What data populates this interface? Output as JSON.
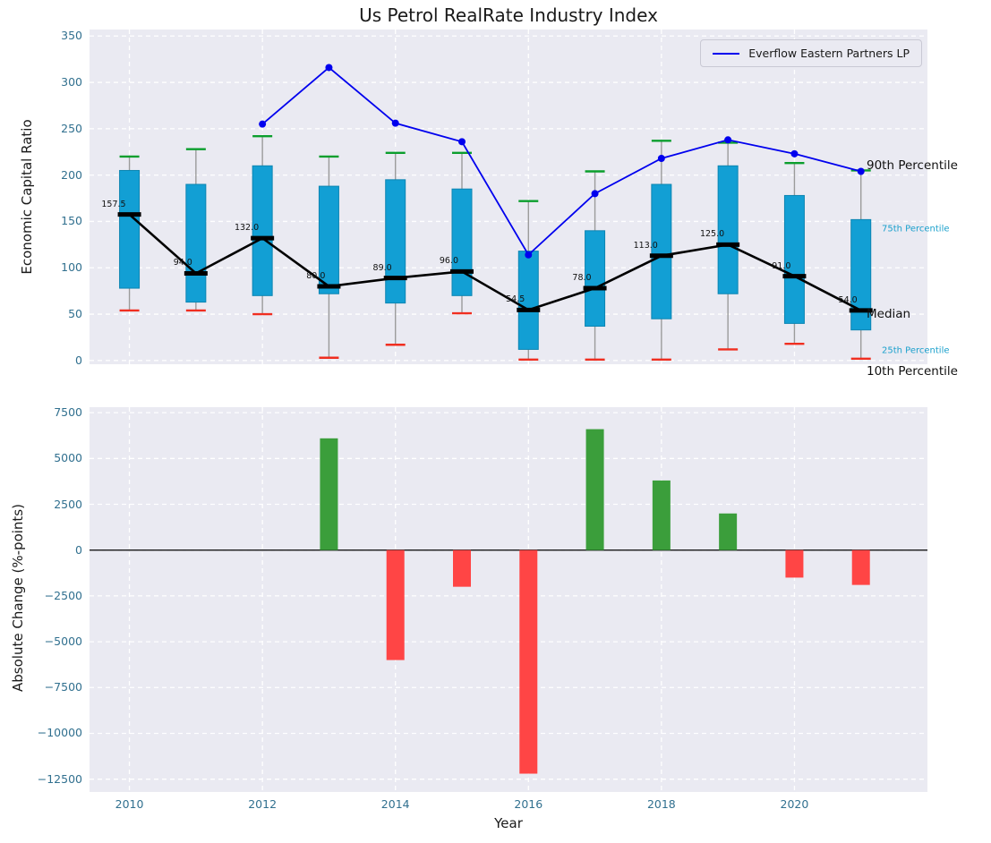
{
  "title": "Us Petrol RealRate Industry Index",
  "legend": {
    "label": "Everflow Eastern Partners LP"
  },
  "colors": {
    "plot_background": "#eaeaf2",
    "grid": "#ffffff",
    "box_fill": "#129fd4",
    "box_edge": "#0d85b2",
    "whisker": "#9b9b9b",
    "cap_top": "#0b9e2d",
    "cap_bottom": "#f02e20",
    "median": "#000000",
    "company_line": "#0000ee",
    "bar_positive": "#3b9e3b",
    "bar_negative": "#ff4545",
    "tick_label": "#31708f",
    "text": "#1a1a1a",
    "annotation_secondary": "#1aa0cc"
  },
  "chart_data": [
    {
      "type": "boxplot",
      "title": "Us Petrol RealRate Industry Index",
      "ylabel": "Economic Capital Ratio",
      "ylim": [
        0,
        350
      ],
      "yticks": [
        0,
        50,
        100,
        150,
        200,
        250,
        300,
        350
      ],
      "years": [
        2010,
        2011,
        2012,
        2013,
        2014,
        2015,
        2016,
        2017,
        2018,
        2019,
        2020,
        2021
      ],
      "boxes": [
        {
          "year": 2010,
          "p10": 54,
          "p25": 78,
          "median": 157.5,
          "p75": 205,
          "p90": 220,
          "label": "157.5"
        },
        {
          "year": 2011,
          "p10": 54,
          "p25": 63,
          "median": 94,
          "p75": 190,
          "p90": 228,
          "label": "94.0"
        },
        {
          "year": 2012,
          "p10": 50,
          "p25": 70,
          "median": 132,
          "p75": 210,
          "p90": 242,
          "label": "132.0"
        },
        {
          "year": 2013,
          "p10": 3,
          "p25": 72,
          "median": 80,
          "p75": 188,
          "p90": 220,
          "label": "80.0"
        },
        {
          "year": 2014,
          "p10": 17,
          "p25": 62,
          "median": 89,
          "p75": 195,
          "p90": 224,
          "label": "89.0"
        },
        {
          "year": 2015,
          "p10": 51,
          "p25": 70,
          "median": 96,
          "p75": 185,
          "p90": 224,
          "label": "96.0"
        },
        {
          "year": 2016,
          "p10": 1,
          "p25": 12,
          "median": 54.5,
          "p75": 118,
          "p90": 172,
          "label": "54.5"
        },
        {
          "year": 2017,
          "p10": 1,
          "p25": 37,
          "median": 78,
          "p75": 140,
          "p90": 204,
          "label": "78.0"
        },
        {
          "year": 2018,
          "p10": 1,
          "p25": 45,
          "median": 113,
          "p75": 190,
          "p90": 237,
          "label": "113.0"
        },
        {
          "year": 2019,
          "p10": 12,
          "p25": 72,
          "median": 125,
          "p75": 210,
          "p90": 235,
          "label": "125.0"
        },
        {
          "year": 2020,
          "p10": 18,
          "p25": 40,
          "median": 91,
          "p75": 178,
          "p90": 213,
          "label": "91.0"
        },
        {
          "year": 2021,
          "p10": 2,
          "p25": 33,
          "median": 54,
          "p75": 152,
          "p90": 205,
          "label": "54.0"
        }
      ],
      "company_series": {
        "name": "Everflow Eastern Partners LP",
        "x": [
          2012,
          2013,
          2014,
          2015,
          2016,
          2017,
          2018,
          2019,
          2020,
          2021
        ],
        "y": [
          255,
          316,
          256,
          236,
          114,
          180,
          218,
          238,
          223,
          204
        ]
      },
      "annotations": [
        {
          "text": "90th Percentile",
          "at": 210,
          "style": "primary"
        },
        {
          "text": "75th Percentile",
          "at": 142,
          "style": "secondary"
        },
        {
          "text": "Median",
          "at": 50,
          "style": "primary"
        },
        {
          "text": "25th Percentile",
          "at": 10,
          "style": "secondary"
        },
        {
          "text": "10th Percentile",
          "at": -12,
          "style": "primary"
        }
      ]
    },
    {
      "type": "bar",
      "ylabel": "Absolute Change (%-points)",
      "xlabel": "Year",
      "ylim": [
        -12500,
        7500
      ],
      "yticks": [
        {
          "value": 7500,
          "label": "7500"
        },
        {
          "value": 5000,
          "label": "5000"
        },
        {
          "value": 2500,
          "label": "2500"
        },
        {
          "value": 0,
          "label": "0"
        },
        {
          "value": -2500,
          "label": "−2500"
        },
        {
          "value": -5000,
          "label": "−5000"
        },
        {
          "value": -7500,
          "label": "−7500"
        },
        {
          "value": -10000,
          "label": "−10000"
        },
        {
          "value": -12500,
          "label": "−12500"
        }
      ],
      "xticks": [
        2010,
        2012,
        2014,
        2016,
        2018,
        2020
      ],
      "x": [
        2013,
        2014,
        2015,
        2016,
        2017,
        2018,
        2019,
        2020,
        2021
      ],
      "values": [
        6100,
        -6000,
        -2000,
        -12200,
        6600,
        3800,
        2000,
        -1500,
        -1900
      ]
    }
  ]
}
